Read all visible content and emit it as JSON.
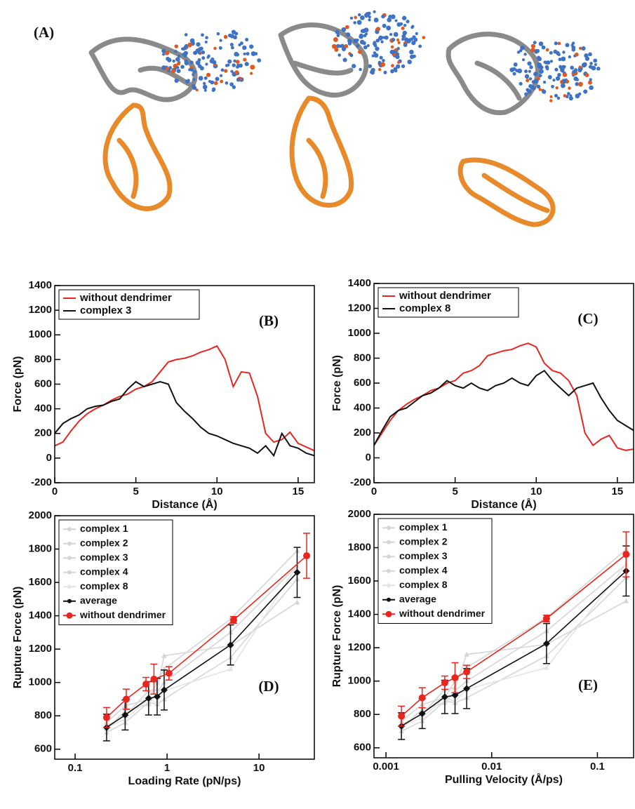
{
  "figure_label": "(A)",
  "chart_data": [
    {
      "type": "line",
      "panel_label": "(B)",
      "xlabel": "Distance (Å)",
      "ylabel": "Force (pN)",
      "xlim": [
        0,
        16
      ],
      "ylim": [
        -200,
        1400
      ],
      "xticks": [
        0,
        5,
        10,
        15
      ],
      "yticks": [
        -200,
        0,
        200,
        400,
        600,
        800,
        1000,
        1200,
        1400
      ],
      "x": [
        0,
        0.5,
        1,
        1.5,
        2,
        2.5,
        3,
        3.5,
        4,
        4.5,
        5,
        5.5,
        6,
        6.5,
        7,
        7.5,
        8,
        8.5,
        9,
        9.5,
        10,
        10.5,
        11,
        11.5,
        12,
        12.5,
        13,
        13.5,
        14,
        14.5,
        15,
        15.5,
        16
      ],
      "series": [
        {
          "name": "without dendrimer",
          "color": "#e8261f",
          "values": [
            100,
            130,
            220,
            300,
            360,
            400,
            430,
            470,
            500,
            520,
            560,
            580,
            620,
            700,
            780,
            800,
            810,
            830,
            860,
            880,
            910,
            800,
            580,
            700,
            690,
            500,
            200,
            130,
            150,
            210,
            120,
            90,
            60
          ]
        },
        {
          "name": "complex 3",
          "color": "#111111",
          "values": [
            200,
            280,
            320,
            350,
            400,
            420,
            430,
            460,
            480,
            560,
            620,
            580,
            600,
            620,
            600,
            450,
            380,
            320,
            250,
            200,
            180,
            150,
            120,
            100,
            80,
            40,
            100,
            20,
            200,
            100,
            80,
            40,
            20
          ]
        }
      ]
    },
    {
      "type": "line",
      "panel_label": "(C)",
      "xlabel": "Distance (Å)",
      "ylabel": "Force (pN)",
      "xlim": [
        0,
        16
      ],
      "ylim": [
        -200,
        1400
      ],
      "xticks": [
        0,
        5,
        10,
        15
      ],
      "yticks": [
        -200,
        0,
        200,
        400,
        600,
        800,
        1000,
        1200,
        1400
      ],
      "x": [
        0,
        0.5,
        1,
        1.5,
        2,
        2.5,
        3,
        3.5,
        4,
        4.5,
        5,
        5.5,
        6,
        6.5,
        7,
        7.5,
        8,
        8.5,
        9,
        9.5,
        10,
        10.5,
        11,
        11.5,
        12,
        12.5,
        13,
        13.5,
        14,
        14.5,
        15,
        15.5,
        16
      ],
      "series": [
        {
          "name": "without dendrimer",
          "color": "#e8261f",
          "values": [
            100,
            200,
            300,
            380,
            430,
            470,
            500,
            540,
            560,
            600,
            620,
            680,
            700,
            740,
            820,
            840,
            860,
            870,
            900,
            920,
            890,
            760,
            700,
            680,
            620,
            500,
            200,
            100,
            150,
            180,
            80,
            60,
            70
          ]
        },
        {
          "name": "complex 8",
          "color": "#111111",
          "values": [
            100,
            220,
            330,
            380,
            400,
            450,
            500,
            520,
            560,
            620,
            580,
            560,
            600,
            560,
            540,
            580,
            600,
            640,
            600,
            580,
            660,
            700,
            620,
            560,
            500,
            560,
            580,
            600,
            480,
            380,
            300,
            260,
            220
          ]
        }
      ]
    },
    {
      "type": "errorbar",
      "panel_label": "(D)",
      "xlabel": "Loading Rate (pN/ps)",
      "ylabel": "Rupture Force (pN)",
      "xscale": "log",
      "xlim": [
        0.06,
        40
      ],
      "ylim": [
        540,
        2000
      ],
      "xticks": [
        0.1,
        1,
        10
      ],
      "yticks": [
        600,
        800,
        1000,
        1200,
        1400,
        1600,
        1800,
        2000
      ],
      "series": [
        {
          "name": "complex 1",
          "color": "#d6d6d6",
          "marker": "triangle",
          "x": [
            0.22,
            0.35,
            0.63,
            0.78,
            0.93,
            4.9,
            26
          ],
          "values": [
            720,
            830,
            870,
            940,
            1000,
            1300,
            1700
          ]
        },
        {
          "name": "complex 2",
          "color": "#d6d6d6",
          "marker": "triangle",
          "x": [
            0.22,
            0.35,
            0.63,
            0.78,
            0.93,
            4.9,
            26
          ],
          "values": [
            760,
            860,
            900,
            1000,
            1080,
            1380,
            1790
          ]
        },
        {
          "name": "complex 3",
          "color": "#d6d6d6",
          "marker": "triangle",
          "x": [
            0.22,
            0.35,
            0.63,
            0.78,
            0.93,
            4.9,
            26
          ],
          "values": [
            700,
            760,
            880,
            870,
            900,
            1150,
            1620
          ]
        },
        {
          "name": "complex 4",
          "color": "#d6d6d6",
          "marker": "triangle",
          "x": [
            0.22,
            0.35,
            0.63,
            0.78,
            0.93,
            4.9,
            26
          ],
          "values": [
            740,
            800,
            950,
            960,
            1160,
            1220,
            1480
          ]
        },
        {
          "name": "complex 8",
          "color": "#e4e4e4",
          "marker": "triangle",
          "x": [
            0.22,
            0.35,
            0.63,
            0.78,
            0.93,
            4.9,
            26
          ],
          "values": [
            730,
            780,
            900,
            880,
            950,
            1080,
            1700
          ]
        },
        {
          "name": "average",
          "color": "#111111",
          "marker": "diamond",
          "x": [
            0.22,
            0.35,
            0.63,
            0.78,
            0.93,
            4.9,
            26
          ],
          "values": [
            730,
            805,
            905,
            915,
            955,
            1225,
            1660
          ],
          "errors": [
            80,
            90,
            100,
            110,
            120,
            120,
            150
          ]
        },
        {
          "name": "without dendrimer",
          "color": "#e8261f",
          "marker": "circle",
          "x": [
            0.22,
            0.36,
            0.59,
            0.72,
            1.05,
            5.3,
            33
          ],
          "values": [
            790,
            900,
            990,
            1020,
            1055,
            1375,
            1760
          ],
          "errors": [
            60,
            60,
            40,
            90,
            40,
            20,
            135
          ]
        }
      ]
    },
    {
      "type": "errorbar",
      "panel_label": "(E)",
      "xlabel": "Pulling Velocity (Å/ps)",
      "ylabel": "Rupture Force (pN)",
      "xscale": "log",
      "xlim": [
        0.00077,
        0.22
      ],
      "ylim": [
        540,
        2000
      ],
      "xticks": [
        0.001,
        0.01,
        0.1
      ],
      "yticks": [
        600,
        800,
        1000,
        1200,
        1400,
        1600,
        1800,
        2000
      ],
      "series": [
        {
          "name": "complex 1",
          "color": "#d6d6d6",
          "marker": "triangle",
          "x": [
            0.0014,
            0.0022,
            0.0036,
            0.0045,
            0.0058,
            0.033,
            0.187
          ],
          "values": [
            720,
            830,
            870,
            940,
            1000,
            1300,
            1700
          ]
        },
        {
          "name": "complex 2",
          "color": "#d6d6d6",
          "marker": "triangle",
          "x": [
            0.0014,
            0.0022,
            0.0036,
            0.0045,
            0.0058,
            0.033,
            0.187
          ],
          "values": [
            760,
            860,
            900,
            1000,
            1080,
            1380,
            1790
          ]
        },
        {
          "name": "complex 3",
          "color": "#d6d6d6",
          "marker": "triangle",
          "x": [
            0.0014,
            0.0022,
            0.0036,
            0.0045,
            0.0058,
            0.033,
            0.187
          ],
          "values": [
            700,
            760,
            880,
            870,
            900,
            1150,
            1620
          ]
        },
        {
          "name": "complex 4",
          "color": "#d6d6d6",
          "marker": "triangle",
          "x": [
            0.0014,
            0.0022,
            0.0036,
            0.0045,
            0.0058,
            0.033,
            0.187
          ],
          "values": [
            740,
            800,
            950,
            960,
            1160,
            1220,
            1480
          ]
        },
        {
          "name": "complex 8",
          "color": "#e4e4e4",
          "marker": "triangle",
          "x": [
            0.0014,
            0.0022,
            0.0036,
            0.0045,
            0.0058,
            0.033,
            0.187
          ],
          "values": [
            730,
            780,
            900,
            880,
            950,
            1080,
            1700
          ]
        },
        {
          "name": "average",
          "color": "#111111",
          "marker": "diamond",
          "x": [
            0.0014,
            0.0022,
            0.0036,
            0.0045,
            0.0058,
            0.033,
            0.187
          ],
          "values": [
            730,
            805,
            905,
            915,
            955,
            1225,
            1660
          ],
          "errors": [
            80,
            90,
            100,
            110,
            120,
            120,
            150
          ]
        },
        {
          "name": "without dendrimer",
          "color": "#e8261f",
          "marker": "circle",
          "x": [
            0.0014,
            0.0022,
            0.0036,
            0.0045,
            0.0058,
            0.033,
            0.187
          ],
          "values": [
            790,
            900,
            990,
            1020,
            1055,
            1375,
            1760
          ],
          "errors": [
            60,
            60,
            40,
            90,
            40,
            20,
            135
          ]
        }
      ]
    }
  ]
}
